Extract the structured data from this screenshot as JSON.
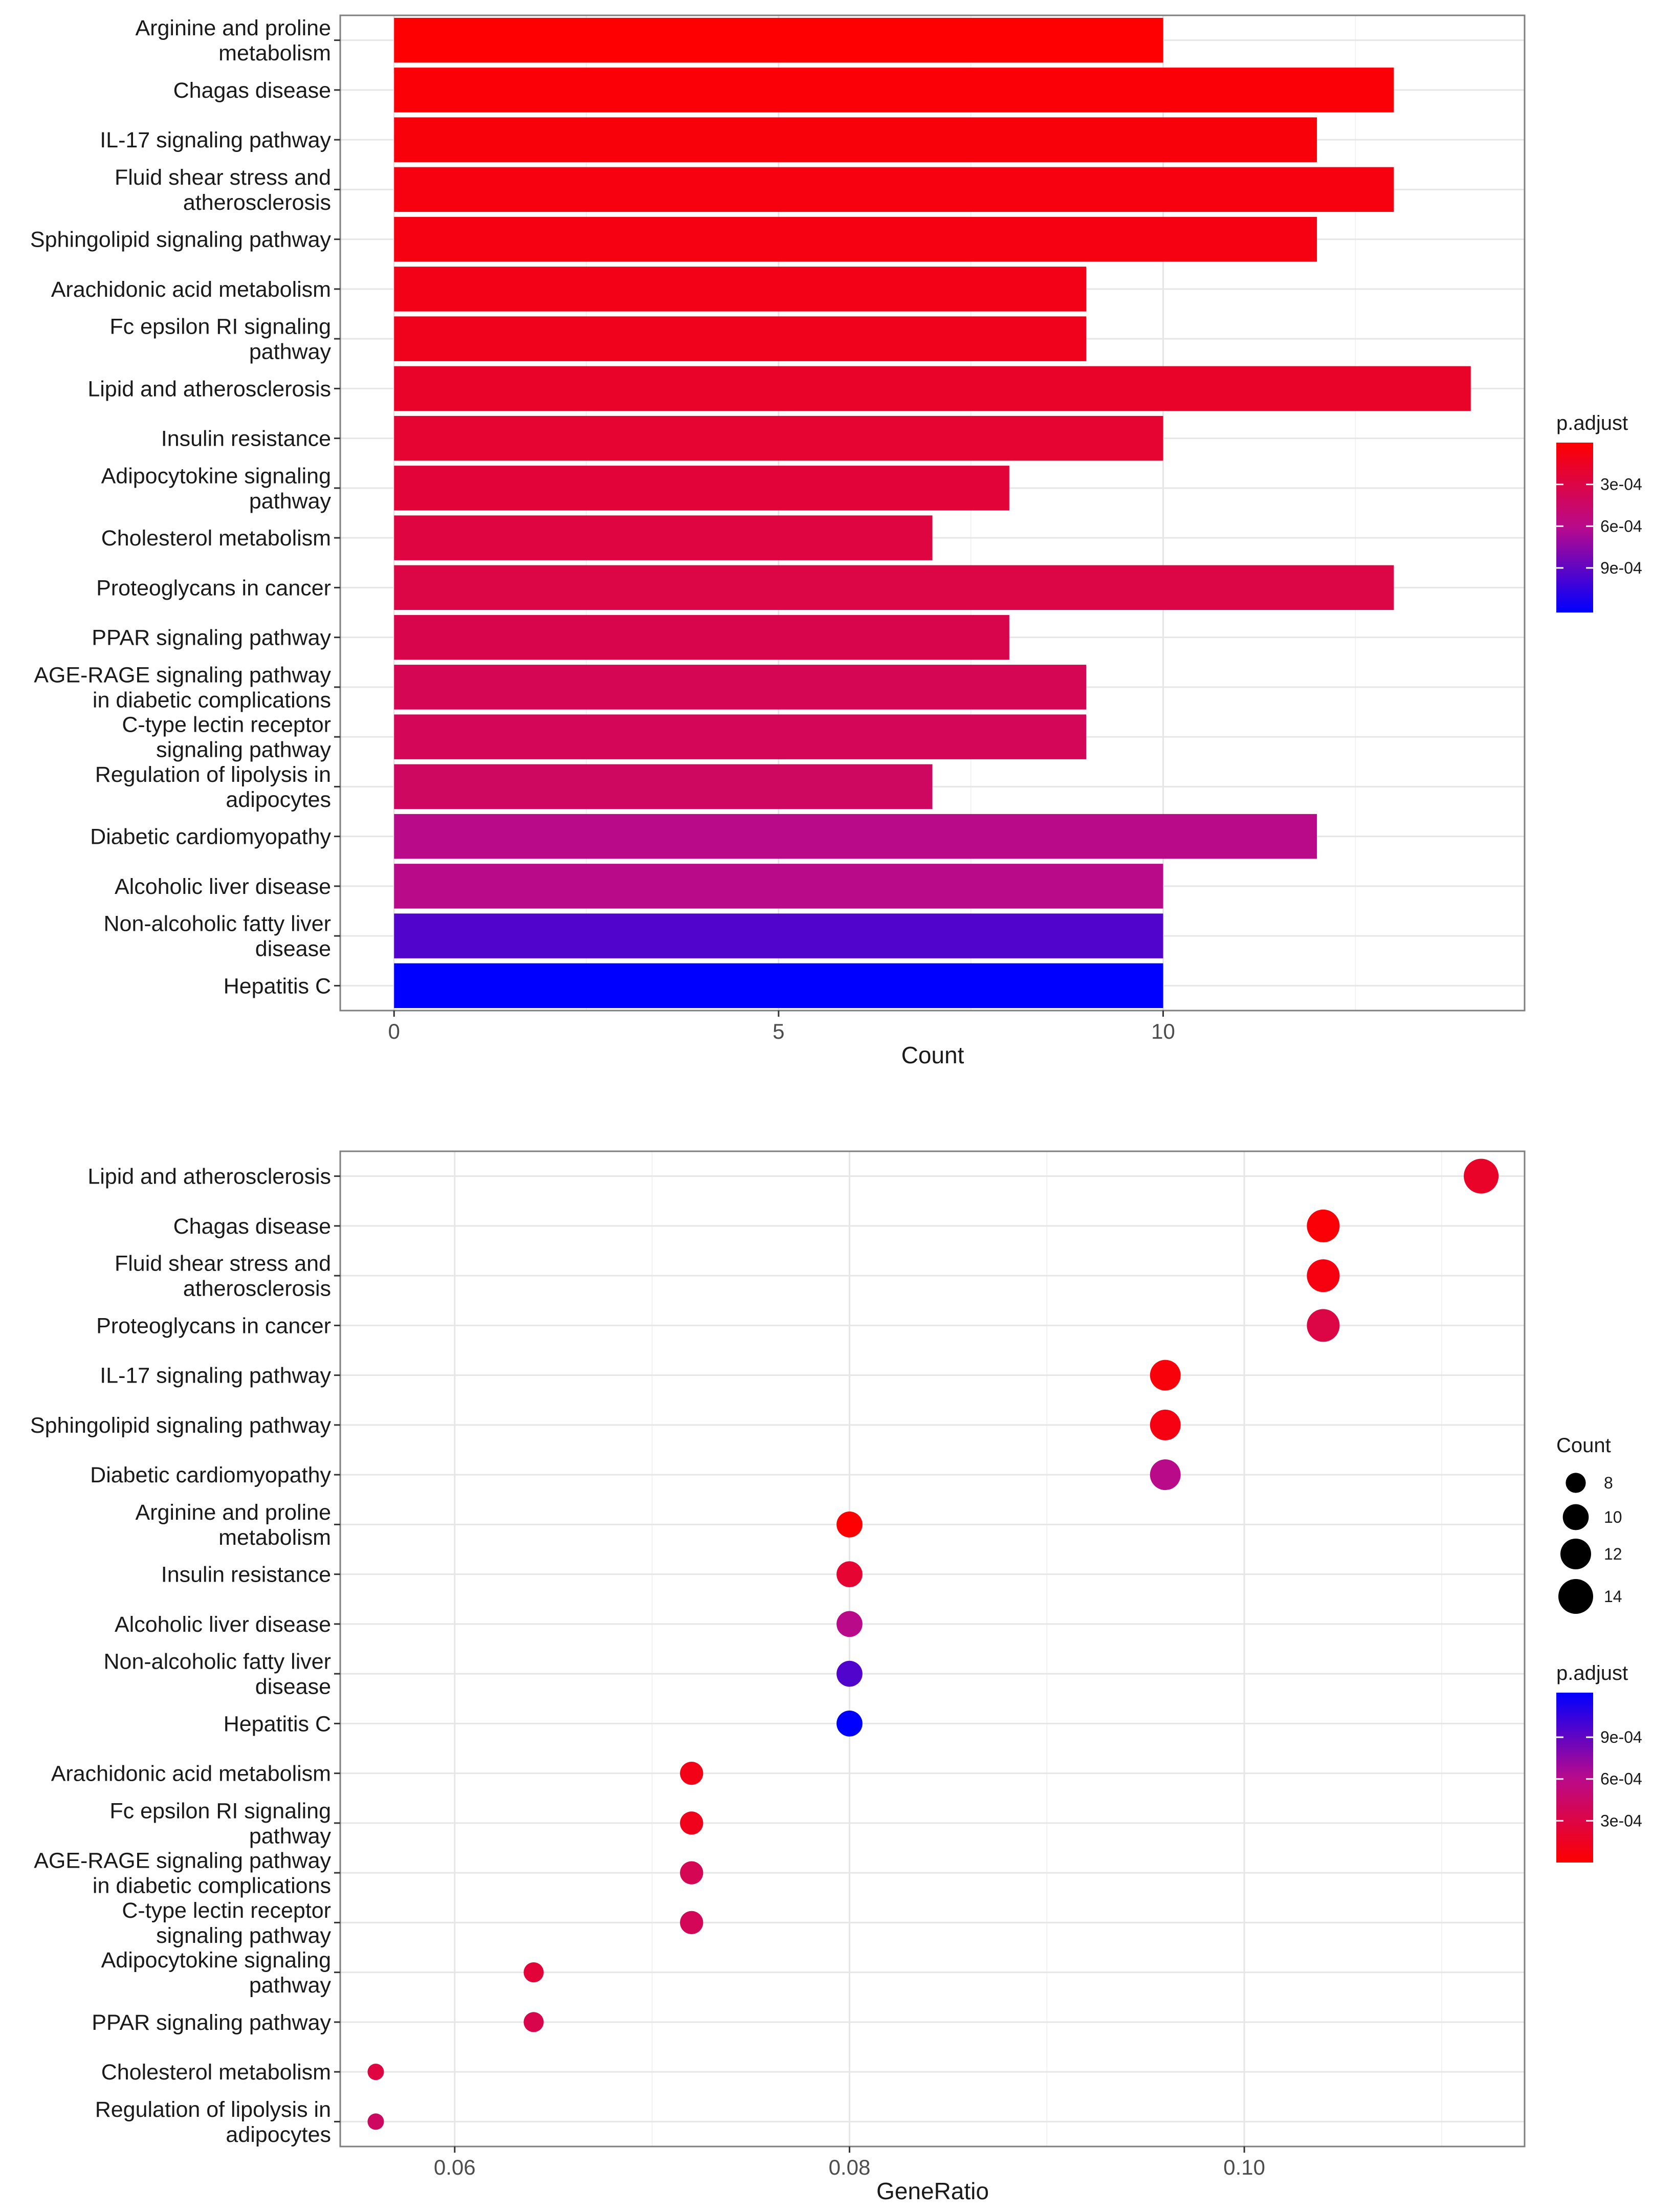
{
  "colors": {
    "low": "#FF0000",
    "mid": "#B80A8C",
    "high": "#0000FF"
  },
  "chart_data": [
    {
      "type": "bar",
      "orientation": "horizontal",
      "title": "",
      "xlabel": "Count",
      "ylabel": "",
      "xlim": [
        -0.7,
        14.7
      ],
      "xticks": [
        0,
        5,
        10
      ],
      "tick_labels": [
        "0",
        "5",
        "10"
      ],
      "grid": true,
      "categories": [
        "Arginine and proline\nmetabolism",
        "Chagas disease",
        "IL-17 signaling pathway",
        "Fluid shear stress and\natherosclerosis",
        "Sphingolipid signaling pathway",
        "Arachidonic acid metabolism",
        "Fc epsilon RI signaling\npathway",
        "Lipid and atherosclerosis",
        "Insulin resistance",
        "Adipocytokine signaling\npathway",
        "Cholesterol metabolism",
        "Proteoglycans in cancer",
        "PPAR signaling pathway",
        "AGE-RAGE signaling pathway\nin diabetic complications",
        "C-type lectin receptor\nsignaling pathway",
        "Regulation of lipolysis in\nadipocytes",
        "Diabetic cardiomyopathy",
        "Alcoholic liver disease",
        "Non-alcoholic fatty liver\ndisease",
        "Hepatitis C"
      ],
      "values": [
        10,
        13,
        12,
        13,
        12,
        9,
        9,
        14,
        10,
        8,
        7,
        13,
        8,
        9,
        9,
        7,
        12,
        10,
        10,
        10
      ],
      "p_adjust": [
        1e-05,
        3e-05,
        5e-05,
        7e-05,
        8e-05,
        0.0001,
        0.00012,
        0.00018,
        0.00022,
        0.00025,
        0.00028,
        0.0003,
        0.00033,
        0.00036,
        0.00038,
        0.00042,
        0.0006,
        0.0006,
        0.00095,
        0.00122
      ],
      "legend": {
        "title": "p.adjust",
        "position": "right",
        "breaks": [
          0.0003,
          0.0006,
          0.0009
        ],
        "labels": [
          "3e-04",
          "6e-04",
          "9e-04"
        ],
        "range": [
          0,
          0.00122
        ],
        "direction": "low-on-top"
      }
    },
    {
      "type": "scatter",
      "subtype": "dot",
      "title": "",
      "xlabel": "GeneRatio",
      "ylabel": "",
      "xlim": [
        0.0542,
        0.1142
      ],
      "xticks": [
        0.06,
        0.08,
        0.1
      ],
      "tick_labels": [
        "0.06",
        "0.08",
        "0.10"
      ],
      "grid": true,
      "categories": [
        "Lipid and atherosclerosis",
        "Chagas disease",
        "Fluid shear stress and\natherosclerosis",
        "Proteoglycans in cancer",
        "IL-17 signaling pathway",
        "Sphingolipid signaling pathway",
        "Diabetic cardiomyopathy",
        "Arginine and proline\nmetabolism",
        "Insulin resistance",
        "Alcoholic liver disease",
        "Non-alcoholic fatty liver\ndisease",
        "Hepatitis C",
        "Arachidonic acid metabolism",
        "Fc epsilon RI signaling\npathway",
        "AGE-RAGE signaling pathway\nin diabetic complications",
        "C-type lectin receptor\nsignaling pathway",
        "Adipocytokine signaling\npathway",
        "PPAR signaling pathway",
        "Cholesterol metabolism",
        "Regulation of lipolysis in\nadipocytes"
      ],
      "gene_ratio": [
        0.112,
        0.104,
        0.104,
        0.104,
        0.096,
        0.096,
        0.096,
        0.08,
        0.08,
        0.08,
        0.08,
        0.08,
        0.072,
        0.072,
        0.072,
        0.072,
        0.064,
        0.064,
        0.056,
        0.056
      ],
      "count": [
        14,
        13,
        13,
        13,
        12,
        12,
        12,
        10,
        10,
        10,
        10,
        10,
        9,
        9,
        9,
        9,
        8,
        8,
        7,
        7
      ],
      "p_adjust": [
        0.00018,
        3e-05,
        7e-05,
        0.0003,
        5e-05,
        8e-05,
        0.0006,
        1e-05,
        0.00022,
        0.0006,
        0.00095,
        0.00122,
        0.0001,
        0.00012,
        0.00036,
        0.00038,
        0.00025,
        0.00033,
        0.00028,
        0.00042
      ],
      "size_legend": {
        "title": "Count",
        "position": "right",
        "breaks": [
          8,
          10,
          12,
          14
        ],
        "labels": [
          "8",
          "10",
          "12",
          "14"
        ]
      },
      "color_legend": {
        "title": "p.adjust",
        "position": "right",
        "breaks": [
          0.0009,
          0.0006,
          0.0003
        ],
        "labels": [
          "9e-04",
          "6e-04",
          "3e-04"
        ],
        "range": [
          0,
          0.00122
        ],
        "direction": "high-on-top"
      }
    }
  ]
}
